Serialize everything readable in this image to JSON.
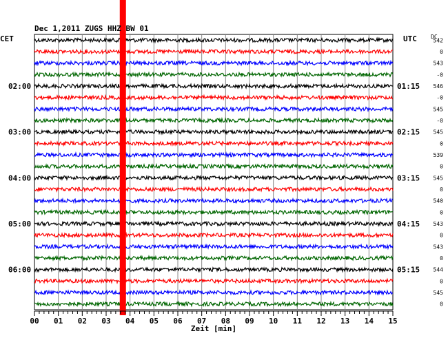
{
  "chart_data": {
    "type": "line",
    "title": "Dec 1,2011   ZUGS HHZ BW 01",
    "left_axis_label": "CET",
    "right_axis_label": "UTC",
    "dc_label": "DC",
    "xlabel": "Zeit [min]",
    "xlim": [
      0,
      15
    ],
    "x_ticks": [
      "00",
      "01",
      "02",
      "03",
      "04",
      "05",
      "06",
      "07",
      "08",
      "09",
      "10",
      "11",
      "12",
      "13",
      "14",
      "15"
    ],
    "traces_per_hour": 4,
    "trace_colors": [
      "#000000",
      "#ff0000",
      "#0000ff",
      "#006600"
    ],
    "left_time_labels": [
      {
        "row": 4,
        "text": "02:00"
      },
      {
        "row": 8,
        "text": "03:00"
      },
      {
        "row": 12,
        "text": "04:00"
      },
      {
        "row": 16,
        "text": "05:00"
      },
      {
        "row": 20,
        "text": "06:00"
      }
    ],
    "right_time_labels": [
      {
        "row": 0,
        "text": "UTC"
      },
      {
        "row": 4,
        "text": "01:15"
      },
      {
        "row": 8,
        "text": "02:15"
      },
      {
        "row": 12,
        "text": "03:15"
      },
      {
        "row": 16,
        "text": "04:15"
      },
      {
        "row": 20,
        "text": "05:15"
      }
    ],
    "dc_values": [
      "542",
      "0",
      "543",
      "-0",
      "546",
      "-0",
      "545",
      "-0",
      "545",
      "0",
      "539",
      "0",
      "545",
      "0",
      "540",
      "0",
      "543",
      "0",
      "543",
      "0",
      "544",
      "0",
      "545",
      "0"
    ],
    "event_marker_minute": 3.7,
    "event_marker_color": "#ff0000"
  }
}
